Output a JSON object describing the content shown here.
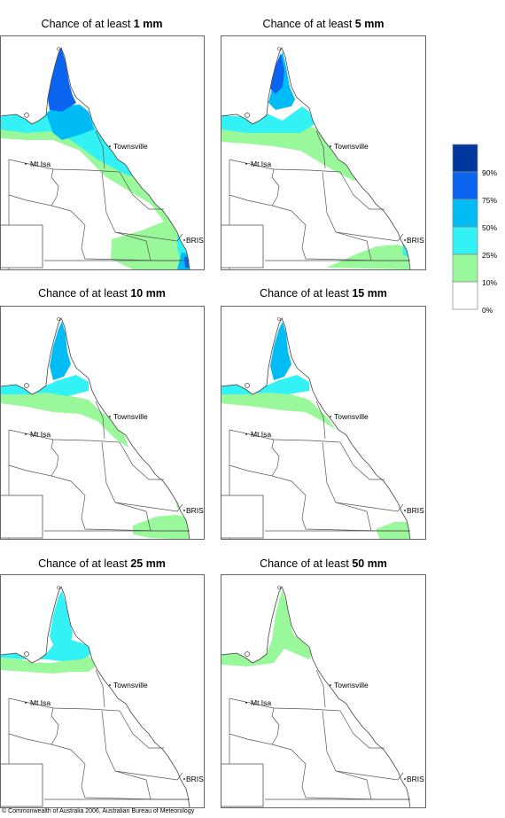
{
  "title_prefix": "Chance of at least",
  "panels": [
    {
      "amount": "1 mm"
    },
    {
      "amount": "5 mm"
    },
    {
      "amount": "10 mm"
    },
    {
      "amount": "15 mm"
    },
    {
      "amount": "25 mm"
    },
    {
      "amount": "50 mm"
    }
  ],
  "places": {
    "townsville": "Townsville",
    "mt_isa": "Mt Isa",
    "brisbane": "BRIS"
  },
  "legend": {
    "labels": [
      "90%",
      "75%",
      "50%",
      "25%",
      "10%",
      "0%"
    ],
    "colors": [
      "#00379e",
      "#0a64f0",
      "#00bcf5",
      "#33f2f5",
      "#99f899",
      "#ffffff"
    ]
  },
  "credit": "© Commonwealth of Australia 2006, Australian Bureau of Meteorology"
}
